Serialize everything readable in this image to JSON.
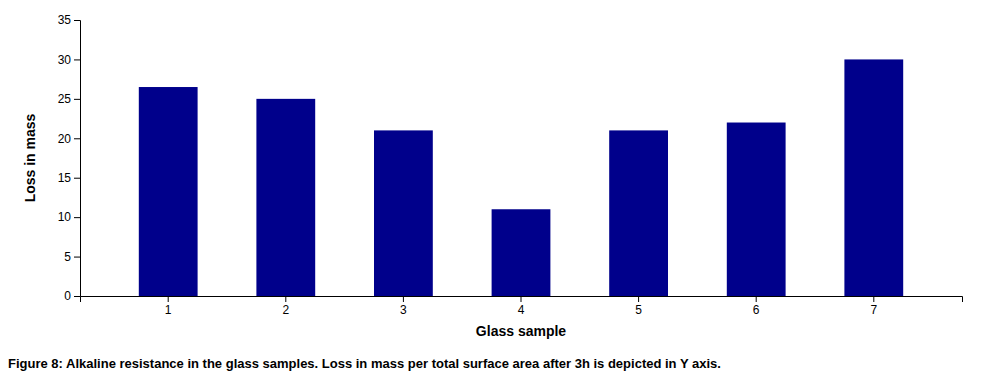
{
  "chart_data": {
    "type": "bar",
    "categories": [
      1,
      2,
      3,
      4,
      5,
      6,
      7
    ],
    "values": [
      26.5,
      25.0,
      21.0,
      11.0,
      21.0,
      22.0,
      30.0
    ],
    "color": "#00008B",
    "xlabel": "Glass sample",
    "ylabel": "Loss in mass",
    "ylim": [
      0,
      35
    ],
    "yticks": [
      0,
      5,
      10,
      15,
      20,
      25,
      30,
      35
    ],
    "grid": false,
    "caption": "Figure 8: Alkaline resistance in the glass samples. Loss in mass per total surface area after 3h is depicted in Y axis."
  }
}
